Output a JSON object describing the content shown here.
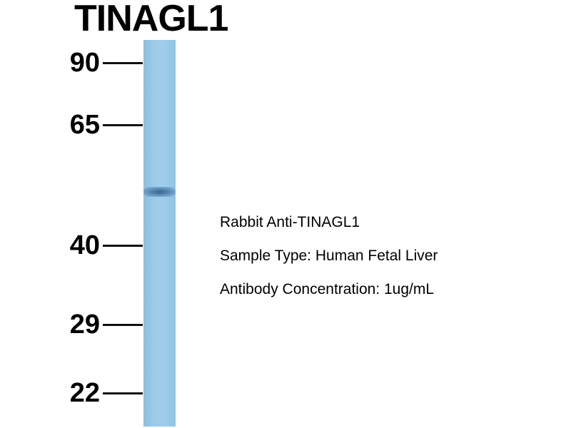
{
  "title": "TINAGL1",
  "markers": [
    "90",
    "65",
    "40",
    "29",
    "22"
  ],
  "band": {
    "lane": 1,
    "marker_between": [
      "65",
      "40"
    ]
  },
  "info": {
    "antibody": "Rabbit Anti-TINAGL1",
    "sample_type": "Sample Type: Human Fetal Liver",
    "concentration": "Antibody Concentration: 1ug/mL"
  },
  "colors": {
    "lane": "#9ccbea",
    "band": "#3f6f9c",
    "text": "#000000"
  }
}
